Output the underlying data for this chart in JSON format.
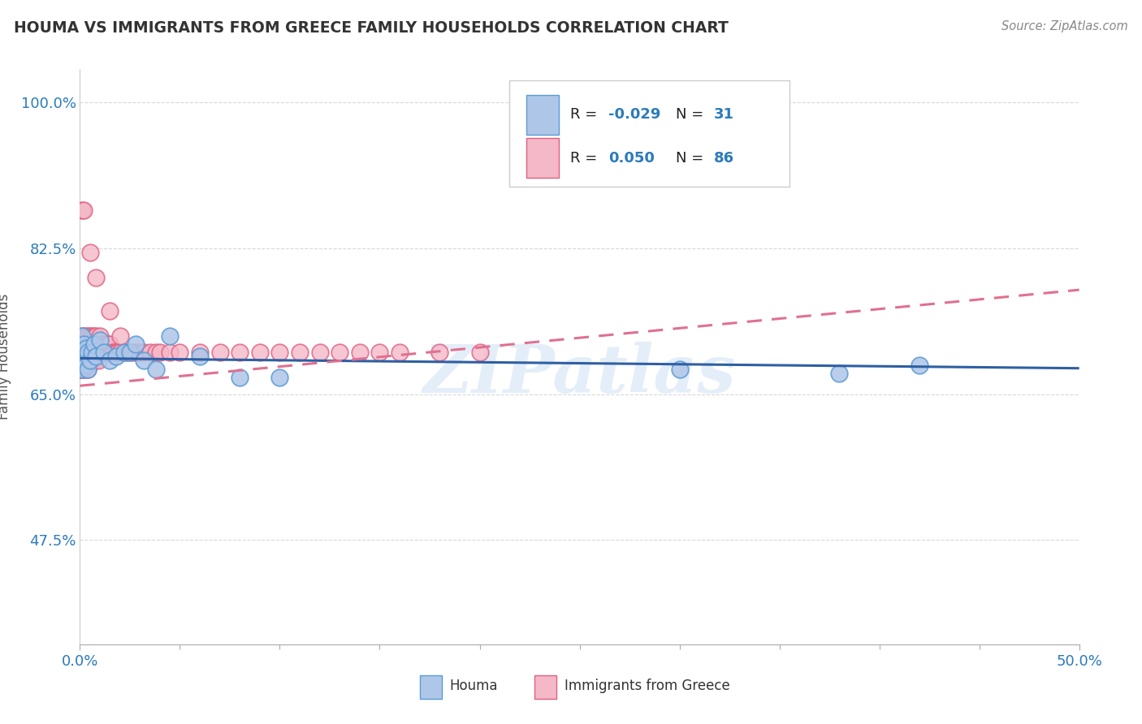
{
  "title": "HOUMA VS IMMIGRANTS FROM GREECE FAMILY HOUSEHOLDS CORRELATION CHART",
  "source": "Source: ZipAtlas.com",
  "ylabel": "Family Households",
  "houma_color": "#aec6e8",
  "houma_edge": "#5b9bd5",
  "greece_color": "#f4b8c8",
  "greece_edge": "#e06080",
  "blue_line_color": "#2e5fa3",
  "pink_line_color": "#e07090",
  "watermark": "ZIPatlas",
  "background_color": "#ffffff",
  "grid_color": "#d8d8d8",
  "houma_x": [
    0.0005,
    0.0008,
    0.001,
    0.001,
    0.0015,
    0.002,
    0.002,
    0.003,
    0.003,
    0.004,
    0.004,
    0.005,
    0.006,
    0.007,
    0.008,
    0.01,
    0.012,
    0.015,
    0.018,
    0.022,
    0.025,
    0.028,
    0.032,
    0.038,
    0.045,
    0.06,
    0.08,
    0.1,
    0.3,
    0.38,
    0.42
  ],
  "houma_y": [
    0.695,
    0.69,
    0.72,
    0.68,
    0.7,
    0.71,
    0.695,
    0.685,
    0.705,
    0.7,
    0.68,
    0.69,
    0.7,
    0.71,
    0.695,
    0.715,
    0.7,
    0.69,
    0.695,
    0.7,
    0.7,
    0.71,
    0.69,
    0.68,
    0.72,
    0.695,
    0.67,
    0.67,
    0.68,
    0.675,
    0.685
  ],
  "greece_x": [
    0.0002,
    0.0004,
    0.0005,
    0.0007,
    0.0008,
    0.001,
    0.001,
    0.001,
    0.001,
    0.0012,
    0.0014,
    0.0015,
    0.0015,
    0.002,
    0.002,
    0.002,
    0.002,
    0.002,
    0.0025,
    0.003,
    0.003,
    0.003,
    0.003,
    0.003,
    0.003,
    0.0035,
    0.004,
    0.004,
    0.004,
    0.004,
    0.0045,
    0.005,
    0.005,
    0.005,
    0.006,
    0.006,
    0.006,
    0.007,
    0.007,
    0.007,
    0.008,
    0.008,
    0.009,
    0.009,
    0.01,
    0.01,
    0.011,
    0.012,
    0.013,
    0.014,
    0.015,
    0.016,
    0.017,
    0.018,
    0.019,
    0.02,
    0.022,
    0.024,
    0.026,
    0.028,
    0.03,
    0.032,
    0.035,
    0.038,
    0.04,
    0.045,
    0.05,
    0.06,
    0.07,
    0.08,
    0.09,
    0.1,
    0.11,
    0.12,
    0.13,
    0.14,
    0.15,
    0.16,
    0.18,
    0.2,
    0.001,
    0.002,
    0.005,
    0.008,
    0.015,
    0.02
  ],
  "greece_y": [
    0.68,
    0.7,
    0.69,
    0.68,
    0.7,
    0.72,
    0.7,
    0.68,
    0.71,
    0.69,
    0.68,
    0.7,
    0.685,
    0.72,
    0.7,
    0.69,
    0.68,
    0.71,
    0.7,
    0.72,
    0.7,
    0.69,
    0.68,
    0.7,
    0.71,
    0.7,
    0.72,
    0.7,
    0.69,
    0.68,
    0.7,
    0.72,
    0.7,
    0.69,
    0.72,
    0.7,
    0.69,
    0.72,
    0.7,
    0.69,
    0.72,
    0.7,
    0.71,
    0.69,
    0.72,
    0.7,
    0.7,
    0.71,
    0.7,
    0.71,
    0.71,
    0.7,
    0.7,
    0.7,
    0.7,
    0.7,
    0.7,
    0.7,
    0.7,
    0.7,
    0.7,
    0.7,
    0.7,
    0.7,
    0.7,
    0.7,
    0.7,
    0.7,
    0.7,
    0.7,
    0.7,
    0.7,
    0.7,
    0.7,
    0.7,
    0.7,
    0.7,
    0.7,
    0.7,
    0.7,
    0.87,
    0.87,
    0.82,
    0.79,
    0.75,
    0.72
  ],
  "blue_line_x": [
    0.0,
    0.5
  ],
  "blue_line_y": [
    0.693,
    0.681
  ],
  "pink_line_x": [
    0.0,
    0.5
  ],
  "pink_line_y": [
    0.66,
    0.775
  ],
  "xlim": [
    0.0,
    0.5
  ],
  "ylim": [
    0.35,
    1.04
  ],
  "yticks": [
    0.475,
    0.65,
    0.825,
    1.0
  ],
  "ytick_labels": [
    "47.5%",
    "65.0%",
    "82.5%",
    "100.0%"
  ],
  "xticks": [
    0.0,
    0.5
  ],
  "xtick_labels": [
    "0.0%",
    "50.0%"
  ]
}
